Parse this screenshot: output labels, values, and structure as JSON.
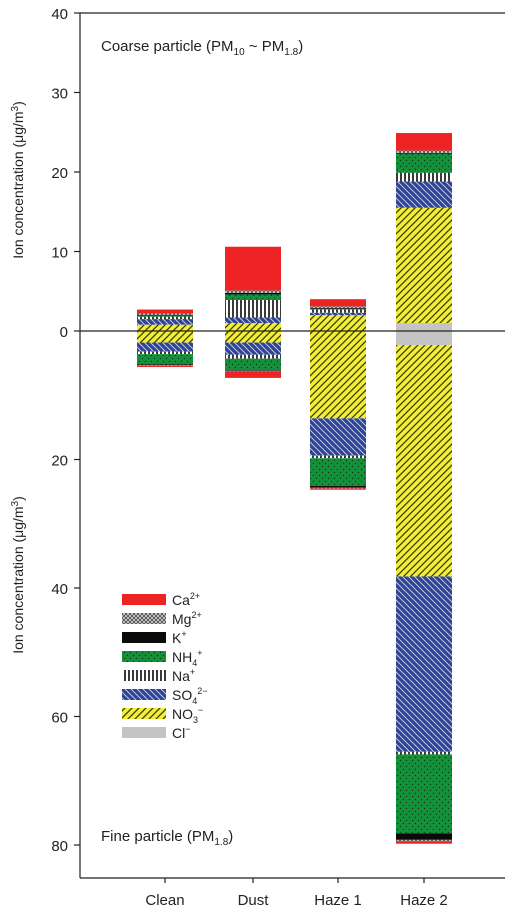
{
  "chart_data": {
    "type": "bar",
    "stacked": true,
    "categories": [
      "Clean",
      "Dust",
      "Haze 1",
      "Haze 2"
    ],
    "upper": {
      "ylabel": "Ion concentration (μg/m3)",
      "ylabel_main": "Ion concentration (μg/m",
      "ylabel_sup": "3",
      "ylabel_end": ")",
      "ylim": [
        0,
        40
      ],
      "ticks": [
        0,
        10,
        20,
        30,
        40
      ],
      "annotation": {
        "text": "Coarse particle (PM10 ~ PM1.8)",
        "parts": [
          "Coarse particle (PM",
          "10",
          " ~ PM",
          "1.8",
          ")"
        ]
      }
    },
    "lower": {
      "ylabel": "Ion concentration (μg/m3)",
      "ylabel_main": "Ion concentration (μg/m",
      "ylabel_sup": "3",
      "ylabel_end": ")",
      "ylim": [
        0,
        85
      ],
      "ticks": [
        20,
        40,
        60,
        80
      ],
      "annotation": {
        "text": "Fine particle (PM1.8)",
        "parts": [
          "Fine particle (PM",
          "1.8",
          ")"
        ]
      }
    },
    "legend_position": "lower-left",
    "series": [
      {
        "name": "Cl−",
        "label_base": "Cl",
        "label_sub": "",
        "label_sup": "−",
        "color": "#c4c4c4",
        "pattern": "none",
        "coarse": [
          0.0,
          0.0,
          0.0,
          1.0
        ],
        "fine": [
          0.0,
          0.0,
          0.0,
          2.2
        ]
      },
      {
        "name": "NO3−",
        "label_base": "NO",
        "label_sub": "3",
        "label_sup": "−",
        "color": "#f2ee3a",
        "pattern": "diag-right",
        "coarse": [
          0.8,
          1.0,
          2.0,
          14.5
        ],
        "fine": [
          1.8,
          1.8,
          13.6,
          36.0
        ]
      },
      {
        "name": "SO42−",
        "label_base": "SO",
        "label_sub": "4",
        "label_sup": "2−",
        "color": "#2f4496",
        "pattern": "diag-left",
        "coarse": [
          0.7,
          0.7,
          0.3,
          3.3
        ],
        "fine": [
          1.4,
          1.9,
          5.8,
          27.3
        ]
      },
      {
        "name": "Na+",
        "label_base": "Na",
        "label_sub": "",
        "label_sup": "+",
        "color": "#9a9a9a",
        "pattern": "vertical",
        "coarse": [
          0.3,
          2.2,
          0.4,
          1.1
        ],
        "fine": [
          0.4,
          0.6,
          0.4,
          0.4
        ]
      },
      {
        "name": "NH4+",
        "label_base": "NH",
        "label_sub": "4",
        "label_sup": "+",
        "color": "#14913b",
        "pattern": "dots",
        "coarse": [
          0.1,
          0.7,
          0.1,
          2.4
        ],
        "fine": [
          1.6,
          1.8,
          4.3,
          12.3
        ]
      },
      {
        "name": "K+",
        "label_base": "K",
        "label_sub": "",
        "label_sup": "+",
        "color": "#0a0a0a",
        "pattern": "none",
        "coarse": [
          0.1,
          0.2,
          0.1,
          0.1
        ],
        "fine": [
          0.1,
          0.1,
          0.3,
          1.0
        ]
      },
      {
        "name": "Mg2+",
        "label_base": "Mg",
        "label_sub": "",
        "label_sup": "2+",
        "color": "#8a8a8a",
        "pattern": "cross",
        "coarse": [
          0.2,
          0.3,
          0.2,
          0.3
        ],
        "fine": [
          0.1,
          0.1,
          0.1,
          0.2
        ]
      },
      {
        "name": "Ca2+",
        "label_base": "Ca",
        "label_sub": "",
        "label_sup": "2+",
        "color": "#ee2323",
        "pattern": "none",
        "coarse": [
          0.5,
          5.5,
          0.9,
          2.2
        ],
        "fine": [
          0.2,
          1.0,
          0.2,
          0.4
        ]
      }
    ],
    "legend_order": [
      "Ca2+",
      "Mg2+",
      "K+",
      "NH4+",
      "Na+",
      "SO42−",
      "NO3−",
      "Cl−"
    ]
  }
}
